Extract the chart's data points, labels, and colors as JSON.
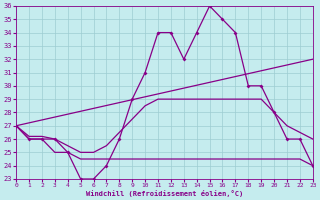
{
  "xlabel": "Windchill (Refroidissement éolien,°C)",
  "xlim": [
    0,
    23
  ],
  "ylim": [
    23,
    36
  ],
  "yticks": [
    23,
    24,
    25,
    26,
    27,
    28,
    29,
    30,
    31,
    32,
    33,
    34,
    35,
    36
  ],
  "xticks": [
    0,
    1,
    2,
    3,
    4,
    5,
    6,
    7,
    8,
    9,
    10,
    11,
    12,
    13,
    14,
    15,
    16,
    17,
    18,
    19,
    20,
    21,
    22,
    23
  ],
  "bg_color": "#c5ecee",
  "grid_color": "#9ecdd2",
  "line_color": "#880088",
  "line1_x": [
    0,
    1,
    2,
    3,
    4,
    5,
    6,
    7,
    8,
    9,
    10,
    11,
    12,
    13,
    14,
    15,
    16,
    17,
    18,
    19,
    20,
    21,
    22,
    23
  ],
  "line1_y": [
    27,
    26,
    26,
    26,
    25,
    23,
    23,
    24,
    26,
    29,
    31,
    34,
    34,
    32,
    34,
    36,
    35,
    34,
    30,
    30,
    28,
    26,
    26,
    24
  ],
  "line2_x": [
    0,
    1,
    2,
    3,
    4,
    5,
    6,
    7,
    8,
    9,
    10,
    11,
    12,
    13,
    14,
    15,
    16,
    17,
    18,
    19,
    20,
    21,
    22,
    23
  ],
  "line2_y": [
    27,
    26,
    26,
    25,
    25,
    24.5,
    24.5,
    24.5,
    24.5,
    24.5,
    24.5,
    24.5,
    24.5,
    24.5,
    24.5,
    24.5,
    24.5,
    24.5,
    24.5,
    24.5,
    24.5,
    24.5,
    24.5,
    24
  ],
  "line3_x": [
    0,
    1,
    2,
    3,
    4,
    5,
    6,
    7,
    8,
    9,
    10,
    11,
    12,
    13,
    14,
    15,
    16,
    17,
    18,
    19,
    20,
    21,
    22,
    23
  ],
  "line3_y": [
    27,
    26.2,
    26.2,
    26,
    25.5,
    25,
    25,
    25.5,
    26.5,
    27.5,
    28.5,
    29,
    29,
    29,
    29,
    29,
    29,
    29,
    29,
    29,
    28,
    27,
    26.5,
    26
  ],
  "line4_x": [
    0,
    23
  ],
  "line4_y": [
    27,
    32
  ]
}
